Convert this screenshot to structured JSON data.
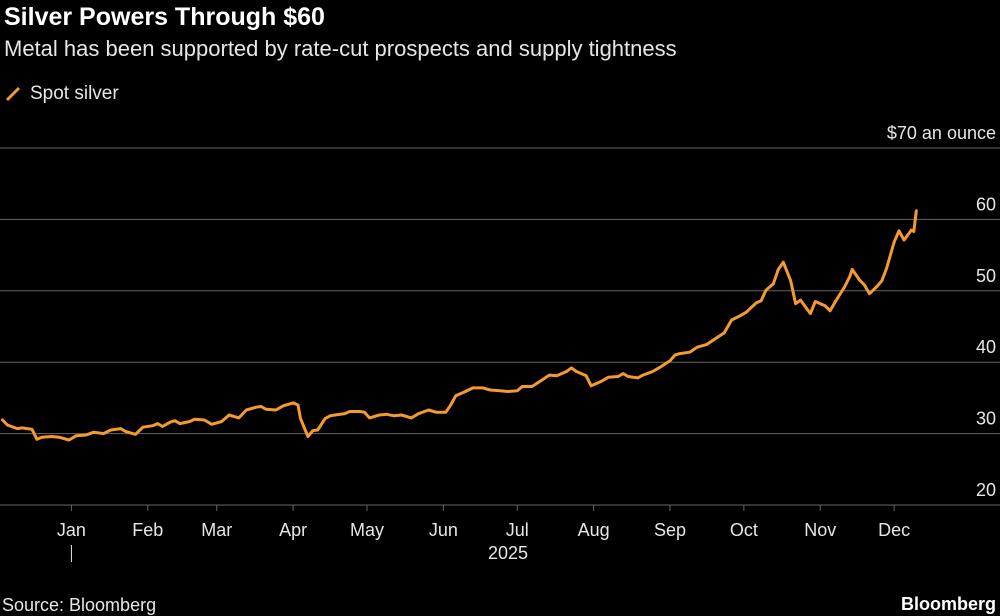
{
  "title": "Silver Powers Through $60",
  "subtitle": "Metal has been supported by rate-cut prospects and supply tightness",
  "legend": {
    "label": "Spot silver",
    "color": "#f59a2f"
  },
  "source": "Source: Bloomberg",
  "brand": "Bloomberg",
  "colors": {
    "background": "#000000",
    "gridline": "#666666",
    "series": "#f59a2f",
    "text": "#e6e6e6"
  },
  "chart_data": {
    "type": "line",
    "title": "Silver Powers Through $60",
    "subtitle": "Metal has been supported by rate-cut prospects and supply tightness",
    "ylabel": "$70 an ounce",
    "ylim": [
      20,
      70
    ],
    "yticks": [
      {
        "value": 20,
        "label": "20"
      },
      {
        "value": 30,
        "label": "30"
      },
      {
        "value": 40,
        "label": "40"
      },
      {
        "value": 50,
        "label": "50"
      },
      {
        "value": 60,
        "label": "60"
      },
      {
        "value": 70,
        "label": "$70 an ounce"
      }
    ],
    "xlim": [
      "2024-12-03",
      "2025-12-31"
    ],
    "xticks": [
      {
        "date": "2025-01-01",
        "label": "Jan"
      },
      {
        "date": "2025-02-01",
        "label": "Feb"
      },
      {
        "date": "2025-03-01",
        "label": "Mar"
      },
      {
        "date": "2025-04-01",
        "label": "Apr"
      },
      {
        "date": "2025-05-01",
        "label": "May"
      },
      {
        "date": "2025-06-01",
        "label": "Jun"
      },
      {
        "date": "2025-07-01",
        "label": "Jul"
      },
      {
        "date": "2025-08-01",
        "label": "Aug"
      },
      {
        "date": "2025-09-01",
        "label": "Sep"
      },
      {
        "date": "2025-10-01",
        "label": "Oct"
      },
      {
        "date": "2025-11-01",
        "label": "Nov"
      },
      {
        "date": "2025-12-01",
        "label": "Dec"
      }
    ],
    "year_label": "2025",
    "grid": true,
    "legend_position": "top-left",
    "series": [
      {
        "name": "Spot silver",
        "color": "#f59a2f",
        "points": [
          [
            "2024-12-04",
            31.9
          ],
          [
            "2024-12-06",
            31.2
          ],
          [
            "2024-12-10",
            30.7
          ],
          [
            "2024-12-12",
            30.8
          ],
          [
            "2024-12-16",
            30.6
          ],
          [
            "2024-12-18",
            29.2
          ],
          [
            "2024-12-20",
            29.5
          ],
          [
            "2024-12-24",
            29.6
          ],
          [
            "2024-12-27",
            29.5
          ],
          [
            "2024-12-31",
            29.1
          ],
          [
            "2025-01-03",
            29.7
          ],
          [
            "2025-01-07",
            29.8
          ],
          [
            "2025-01-10",
            30.2
          ],
          [
            "2025-01-14",
            30.0
          ],
          [
            "2025-01-17",
            30.5
          ],
          [
            "2025-01-21",
            30.7
          ],
          [
            "2025-01-23",
            30.3
          ],
          [
            "2025-01-27",
            29.9
          ],
          [
            "2025-01-30",
            30.9
          ],
          [
            "2025-02-03",
            31.1
          ],
          [
            "2025-02-05",
            31.4
          ],
          [
            "2025-02-07",
            31.0
          ],
          [
            "2025-02-10",
            31.6
          ],
          [
            "2025-02-12",
            31.8
          ],
          [
            "2025-02-14",
            31.4
          ],
          [
            "2025-02-18",
            31.7
          ],
          [
            "2025-02-20",
            32.0
          ],
          [
            "2025-02-24",
            31.9
          ],
          [
            "2025-02-27",
            31.3
          ],
          [
            "2025-03-03",
            31.7
          ],
          [
            "2025-03-06",
            32.6
          ],
          [
            "2025-03-10",
            32.2
          ],
          [
            "2025-03-13",
            33.3
          ],
          [
            "2025-03-17",
            33.7
          ],
          [
            "2025-03-19",
            33.8
          ],
          [
            "2025-03-21",
            33.4
          ],
          [
            "2025-03-25",
            33.3
          ],
          [
            "2025-03-28",
            33.9
          ],
          [
            "2025-04-01",
            34.3
          ],
          [
            "2025-04-03",
            34.0
          ],
          [
            "2025-04-04",
            32.1
          ],
          [
            "2025-04-07",
            29.6
          ],
          [
            "2025-04-09",
            30.4
          ],
          [
            "2025-04-11",
            30.5
          ],
          [
            "2025-04-14",
            32.1
          ],
          [
            "2025-04-16",
            32.5
          ],
          [
            "2025-04-18",
            32.6
          ],
          [
            "2025-04-22",
            32.8
          ],
          [
            "2025-04-24",
            33.1
          ],
          [
            "2025-04-28",
            33.1
          ],
          [
            "2025-04-30",
            33.0
          ],
          [
            "2025-05-02",
            32.2
          ],
          [
            "2025-05-06",
            32.6
          ],
          [
            "2025-05-09",
            32.7
          ],
          [
            "2025-05-12",
            32.5
          ],
          [
            "2025-05-15",
            32.6
          ],
          [
            "2025-05-19",
            32.2
          ],
          [
            "2025-05-22",
            32.8
          ],
          [
            "2025-05-26",
            33.3
          ],
          [
            "2025-05-29",
            33.0
          ],
          [
            "2025-06-02",
            33.0
          ],
          [
            "2025-06-04",
            34.0
          ],
          [
            "2025-06-06",
            35.3
          ],
          [
            "2025-06-10",
            35.9
          ],
          [
            "2025-06-13",
            36.4
          ],
          [
            "2025-06-17",
            36.4
          ],
          [
            "2025-06-20",
            36.1
          ],
          [
            "2025-06-24",
            36.0
          ],
          [
            "2025-06-27",
            35.9
          ],
          [
            "2025-07-01",
            36.0
          ],
          [
            "2025-07-03",
            36.6
          ],
          [
            "2025-07-07",
            36.6
          ],
          [
            "2025-07-11",
            37.5
          ],
          [
            "2025-07-14",
            38.2
          ],
          [
            "2025-07-17",
            38.1
          ],
          [
            "2025-07-21",
            38.7
          ],
          [
            "2025-07-23",
            39.2
          ],
          [
            "2025-07-25",
            38.7
          ],
          [
            "2025-07-29",
            38.1
          ],
          [
            "2025-07-31",
            36.7
          ],
          [
            "2025-08-04",
            37.3
          ],
          [
            "2025-08-07",
            37.9
          ],
          [
            "2025-08-11",
            38.0
          ],
          [
            "2025-08-13",
            38.4
          ],
          [
            "2025-08-15",
            38.0
          ],
          [
            "2025-08-19",
            37.8
          ],
          [
            "2025-08-21",
            38.2
          ],
          [
            "2025-08-25",
            38.7
          ],
          [
            "2025-08-28",
            39.3
          ],
          [
            "2025-09-01",
            40.2
          ],
          [
            "2025-09-03",
            41.0
          ],
          [
            "2025-09-05",
            41.2
          ],
          [
            "2025-09-09",
            41.4
          ],
          [
            "2025-09-12",
            42.1
          ],
          [
            "2025-09-16",
            42.5
          ],
          [
            "2025-09-19",
            43.2
          ],
          [
            "2025-09-23",
            44.1
          ],
          [
            "2025-09-26",
            45.9
          ],
          [
            "2025-09-30",
            46.6
          ],
          [
            "2025-10-02",
            47.0
          ],
          [
            "2025-10-06",
            48.3
          ],
          [
            "2025-10-08",
            48.6
          ],
          [
            "2025-10-10",
            50.1
          ],
          [
            "2025-10-13",
            51.0
          ],
          [
            "2025-10-15",
            53.0
          ],
          [
            "2025-10-17",
            54.0
          ],
          [
            "2025-10-20",
            51.4
          ],
          [
            "2025-10-22",
            48.2
          ],
          [
            "2025-10-24",
            48.7
          ],
          [
            "2025-10-28",
            46.8
          ],
          [
            "2025-10-30",
            48.5
          ],
          [
            "2025-11-03",
            47.9
          ],
          [
            "2025-11-05",
            47.2
          ],
          [
            "2025-11-07",
            48.4
          ],
          [
            "2025-11-11",
            50.6
          ],
          [
            "2025-11-13",
            52.0
          ],
          [
            "2025-11-14",
            53.0
          ],
          [
            "2025-11-17",
            51.5
          ],
          [
            "2025-11-19",
            50.8
          ],
          [
            "2025-11-21",
            49.6
          ],
          [
            "2025-11-24",
            50.6
          ],
          [
            "2025-11-26",
            51.4
          ],
          [
            "2025-11-28",
            53.2
          ],
          [
            "2025-12-01",
            56.8
          ],
          [
            "2025-12-03",
            58.4
          ],
          [
            "2025-12-05",
            57.1
          ],
          [
            "2025-12-08",
            58.5
          ],
          [
            "2025-12-09",
            58.3
          ],
          [
            "2025-12-10",
            61.2
          ]
        ]
      }
    ]
  }
}
